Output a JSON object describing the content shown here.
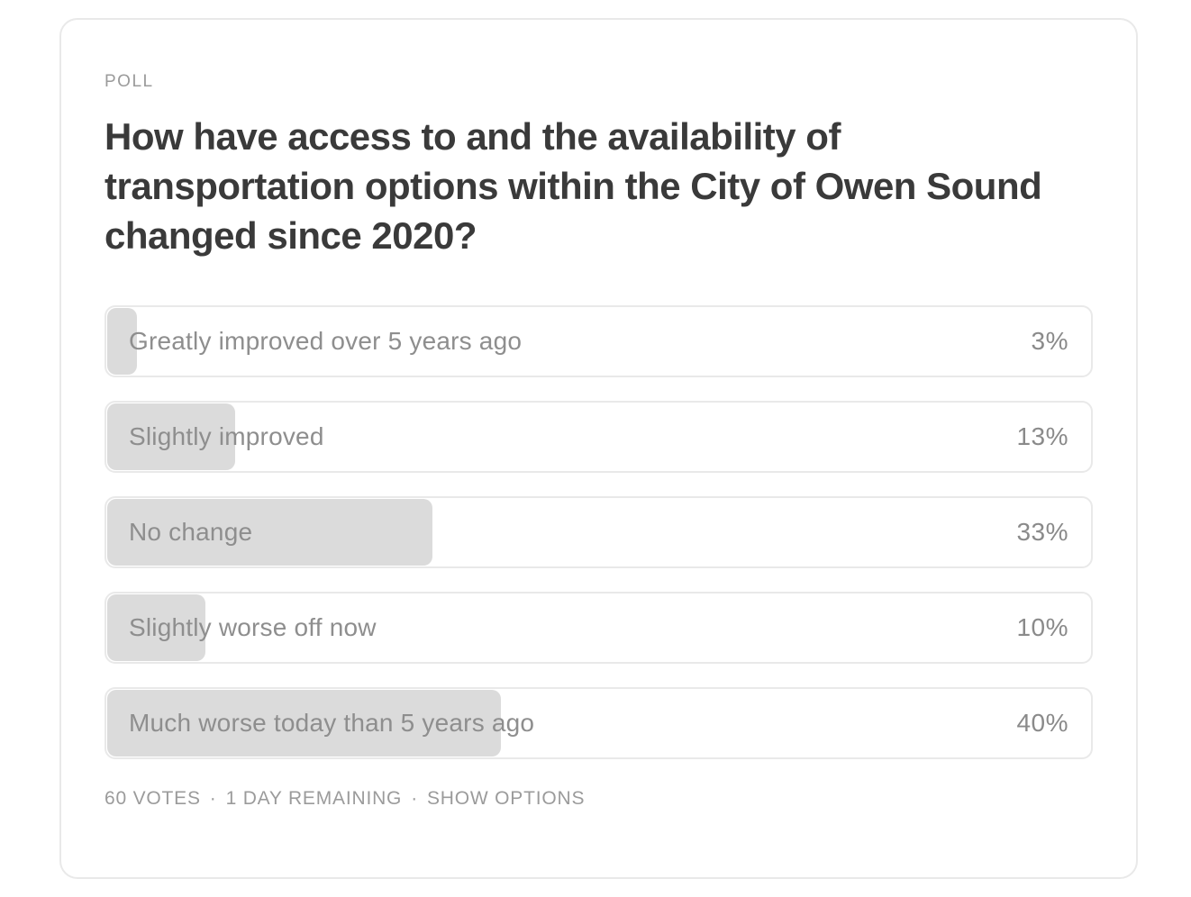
{
  "poll": {
    "kicker": "POLL",
    "question": "How have access to and the availability of transportation options within the City of Owen Sound changed since 2020?",
    "options": [
      {
        "label": "Greatly improved over 5 years ago",
        "percent_label": "3%",
        "percent_value": 3
      },
      {
        "label": "Slightly improved",
        "percent_label": "13%",
        "percent_value": 13
      },
      {
        "label": "No change",
        "percent_label": "33%",
        "percent_value": 33
      },
      {
        "label": "Slightly worse off now",
        "percent_label": "10%",
        "percent_value": 10
      },
      {
        "label": "Much worse today than 5 years ago",
        "percent_label": "40%",
        "percent_value": 40
      }
    ],
    "footer": {
      "votes": "60 VOTES",
      "separator": "·",
      "remaining": "1 DAY REMAINING",
      "show_options_label": "SHOW OPTIONS"
    },
    "colors": {
      "bar_fill": "#dbdbdb",
      "row_border": "#e9e9e9",
      "card_border": "#e9e9e9",
      "label_text": "#8e8e8e",
      "heading_text": "#3a3a3a",
      "muted_text": "#9b9b9b"
    }
  }
}
